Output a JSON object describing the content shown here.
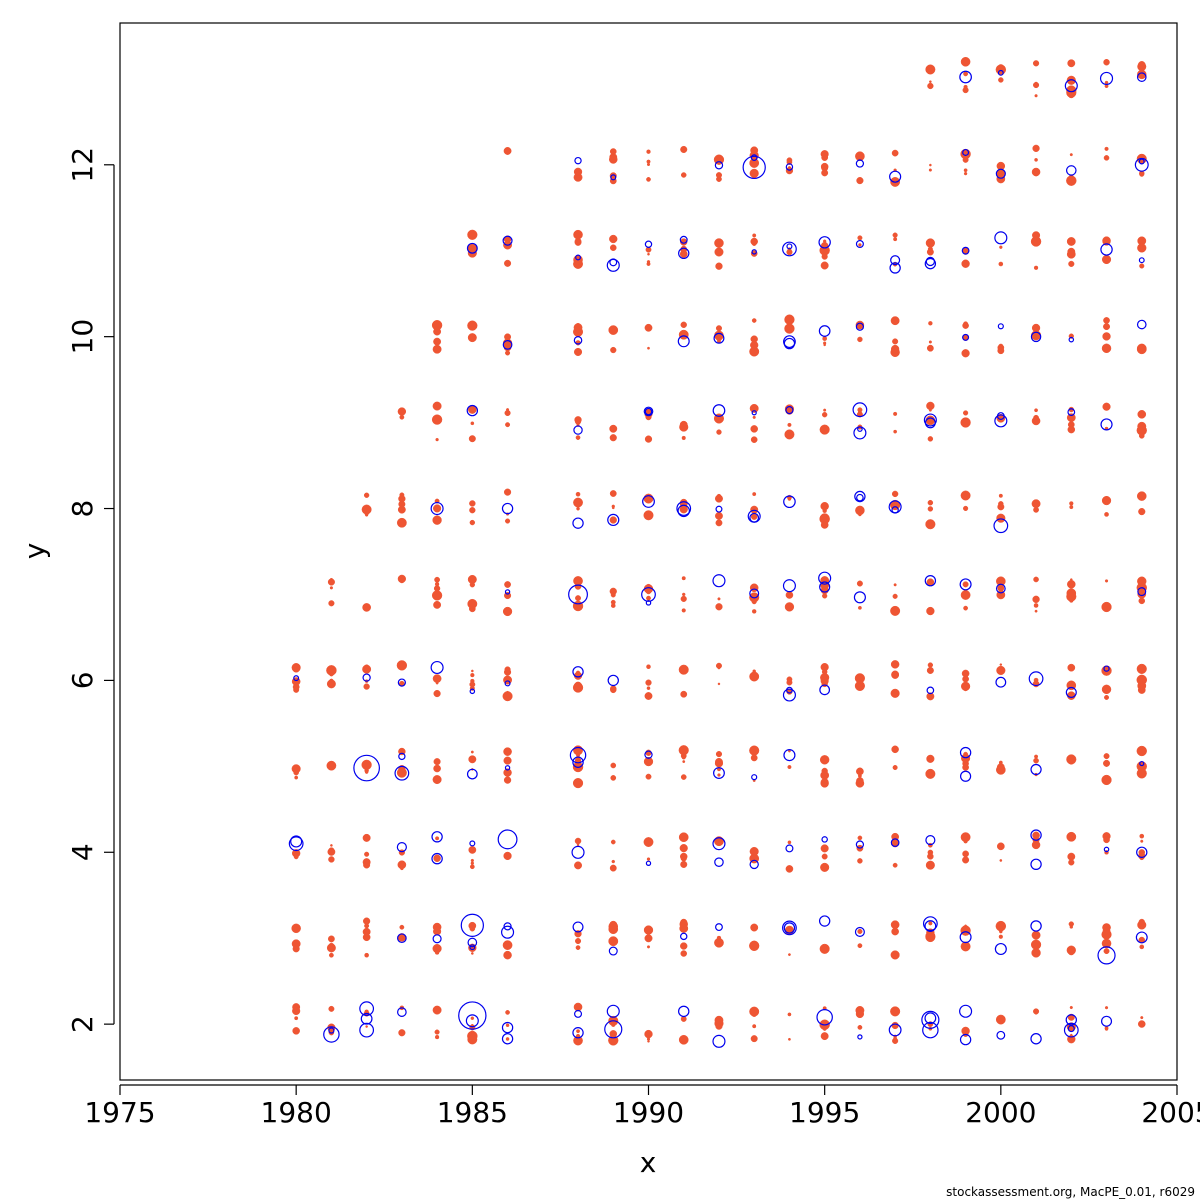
{
  "credit": "stockassessment.org, MacPE_0.01, r6029",
  "colors": {
    "positive": "#ee5533",
    "negative": "#0000ee",
    "axis": "#000000"
  },
  "chart_data": {
    "type": "scatter",
    "title": "",
    "xlabel": "x",
    "ylabel": "y",
    "xlim": [
      1975,
      2005
    ],
    "ylim": [
      1.35,
      13.65
    ],
    "x_ticks": [
      1975,
      1980,
      1985,
      1990,
      1995,
      2000,
      2005
    ],
    "y_ticks": [
      2,
      4,
      6,
      8,
      10,
      12
    ],
    "grid": false,
    "legend": "none",
    "description_of_marks": "bubble plot: red filled dots = positive residuals, blue open circles = negative residuals; radius proportional to |residual|",
    "points": [
      {
        "x": 1980,
        "y": 4.1,
        "r": -0.8
      },
      {
        "x": 1985,
        "y": 2.1,
        "r": -1.6
      },
      {
        "x": 1985,
        "y": 3.15,
        "r": -1.3
      },
      {
        "x": 1982,
        "y": 4.98,
        "r": -1.5
      },
      {
        "x": 1993,
        "y": 11.97,
        "r": -1.3
      },
      {
        "x": 2002,
        "y": 12.92,
        "r": -0.7
      },
      {
        "x": 2004,
        "y": 12.0,
        "r": -0.75
      },
      {
        "x": 1986,
        "y": 4.15,
        "r": -1.1
      },
      {
        "x": 1988,
        "y": 7.0,
        "r": -1.1
      },
      {
        "x": 1988,
        "y": 5.13,
        "r": -0.9
      },
      {
        "x": 1981,
        "y": 1.88,
        "r": -0.9
      },
      {
        "x": 1982,
        "y": 2.18,
        "r": -0.8
      },
      {
        "x": 1982,
        "y": 1.93,
        "r": -0.8
      },
      {
        "x": 1983,
        "y": 4.92,
        "r": -0.8
      },
      {
        "x": 1984,
        "y": 8.0,
        "r": -0.7
      },
      {
        "x": 1984,
        "y": 6.15,
        "r": -0.7
      },
      {
        "x": 1984,
        "y": 4.18,
        "r": -0.6
      },
      {
        "x": 1985,
        "y": 9.14,
        "r": -0.6
      },
      {
        "x": 1986,
        "y": 8.0,
        "r": -0.6
      },
      {
        "x": 1986,
        "y": 3.07,
        "r": -0.7
      },
      {
        "x": 1986,
        "y": 1.96,
        "r": -0.6
      },
      {
        "x": 1986,
        "y": 1.83,
        "r": -0.6
      },
      {
        "x": 1988,
        "y": 7.83,
        "r": -0.6
      },
      {
        "x": 1988,
        "y": 6.1,
        "r": -0.6
      },
      {
        "x": 1989,
        "y": 10.83,
        "r": -0.7
      },
      {
        "x": 1989,
        "y": 6.0,
        "r": -0.6
      },
      {
        "x": 1989,
        "y": 1.94,
        "r": -1.0
      },
      {
        "x": 1989,
        "y": 2.15,
        "r": -0.7
      },
      {
        "x": 1990,
        "y": 7.0,
        "r": -0.8
      },
      {
        "x": 1990,
        "y": 9.13,
        "r": -0.5
      },
      {
        "x": 1991,
        "y": 10.97,
        "r": -0.6
      },
      {
        "x": 1991,
        "y": 8.0,
        "r": -0.8
      },
      {
        "x": 1992,
        "y": 7.16,
        "r": -0.7
      },
      {
        "x": 1992,
        "y": 4.1,
        "r": -0.7
      },
      {
        "x": 1992,
        "y": 1.8,
        "r": -0.7
      },
      {
        "x": 1993,
        "y": 7.91,
        "r": -0.7
      },
      {
        "x": 1994,
        "y": 11.02,
        "r": -0.8
      },
      {
        "x": 1994,
        "y": 9.92,
        "r": -0.6
      },
      {
        "x": 1994,
        "y": 5.83,
        "r": -0.7
      },
      {
        "x": 1994,
        "y": 3.12,
        "r": -0.8
      },
      {
        "x": 1995,
        "y": 7.19,
        "r": -0.7
      },
      {
        "x": 1995,
        "y": 2.08,
        "r": -0.9
      },
      {
        "x": 1995,
        "y": 3.2,
        "r": -0.6
      },
      {
        "x": 1996,
        "y": 9.15,
        "r": -0.8
      },
      {
        "x": 1996,
        "y": 8.88,
        "r": -0.7
      },
      {
        "x": 1996,
        "y": 8.14,
        "r": -0.6
      },
      {
        "x": 1997,
        "y": 8.02,
        "r": -0.7
      },
      {
        "x": 1997,
        "y": 10.8,
        "r": -0.6
      },
      {
        "x": 1998,
        "y": 9.03,
        "r": -0.7
      },
      {
        "x": 1998,
        "y": 3.17,
        "r": -0.8
      },
      {
        "x": 1998,
        "y": 2.05,
        "r": -1.0
      },
      {
        "x": 1998,
        "y": 1.93,
        "r": -0.9
      },
      {
        "x": 1998,
        "y": 7.16,
        "r": -0.6
      },
      {
        "x": 1998,
        "y": 10.85,
        "r": -0.6
      },
      {
        "x": 1999,
        "y": 5.16,
        "r": -0.6
      },
      {
        "x": 1999,
        "y": 2.15,
        "r": -0.7
      },
      {
        "x": 1999,
        "y": 1.82,
        "r": -0.6
      },
      {
        "x": 2000,
        "y": 11.15,
        "r": -0.7
      },
      {
        "x": 2000,
        "y": 9.02,
        "r": -0.7
      },
      {
        "x": 2000,
        "y": 7.8,
        "r": -0.8
      },
      {
        "x": 2001,
        "y": 6.02,
        "r": -0.8
      },
      {
        "x": 2001,
        "y": 4.2,
        "r": -0.6
      },
      {
        "x": 2001,
        "y": 3.86,
        "r": -0.6
      },
      {
        "x": 2001,
        "y": 1.83,
        "r": -0.6
      },
      {
        "x": 2002,
        "y": 2.05,
        "r": -0.6
      },
      {
        "x": 2002,
        "y": 1.93,
        "r": -0.8
      },
      {
        "x": 2003,
        "y": 2.8,
        "r": -1.0
      },
      {
        "x": 2004,
        "y": 4.0,
        "r": -0.6
      },
      {
        "x": 1983,
        "y": 2.14,
        "r": -0.5
      },
      {
        "x": 1983,
        "y": 3.0,
        "r": -0.5
      },
      {
        "x": 1985,
        "y": 2.95,
        "r": -0.5
      },
      {
        "x": 1988,
        "y": 1.9,
        "r": -0.6
      }
    ]
  }
}
